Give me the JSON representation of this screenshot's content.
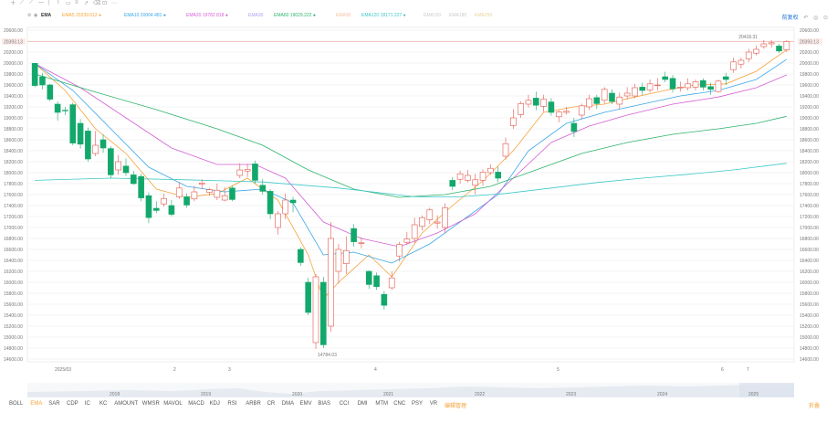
{
  "header": {
    "indicator_name": "EMA",
    "legend": [
      {
        "label": "EMA5",
        "value": "20239.612",
        "color": "#f6a23c"
      },
      {
        "label": "EMA10",
        "value": "20064.481",
        "color": "#3aa6e8"
      },
      {
        "label": "EMA20",
        "value": "19782.818",
        "color": "#d45fd4"
      },
      {
        "label": "EMA30",
        "value": "",
        "color": "#b0a0f0"
      },
      {
        "label": "EMA60",
        "value": "19029.222",
        "color": "#2db36a"
      },
      {
        "label": "EMA90",
        "value": "",
        "color": "#f6c0a0"
      },
      {
        "label": "EMA120",
        "value": "18171.227",
        "color": "#3ec8c8"
      },
      {
        "label": "EMA150",
        "value": "",
        "color": "#ccc"
      },
      {
        "label": "EMA180",
        "value": "",
        "color": "#ccc"
      },
      {
        "label": "EMA250",
        "value": "",
        "color": "#e6d2a0"
      }
    ],
    "right_label": "前复权"
  },
  "chart_data": {
    "type": "candlestick",
    "y_ticks": [
      14600,
      14800,
      15000,
      15200,
      15400,
      15600,
      15800,
      16000,
      16200,
      16400,
      16600,
      16800,
      17000,
      17200,
      17400,
      17600,
      17800,
      18000,
      18200,
      18400,
      18600,
      18800,
      19000,
      19200,
      19400,
      19600,
      19800,
      20000,
      20200,
      20400,
      20600
    ],
    "ylim": [
      14550,
      20650
    ],
    "x_labels": [
      "2025/03",
      "2",
      "3",
      "4",
      "5",
      "6",
      "7"
    ],
    "year_labels": [
      "2018",
      "2019",
      "2020",
      "2021",
      "2022",
      "2023",
      "2024",
      "2025"
    ],
    "current_price": "20393.13",
    "high_annotation": "20418.31",
    "low_annotation": "14784.03",
    "candles": [
      [
        19994,
        19590,
        20000,
        19560
      ],
      [
        19750,
        19600,
        19820,
        19520
      ],
      [
        19600,
        19340,
        19620,
        19300
      ],
      [
        19250,
        19100,
        19300,
        18950
      ],
      [
        19140,
        19130,
        19200,
        19050
      ],
      [
        19240,
        18540,
        19280,
        18500
      ],
      [
        18900,
        18520,
        18980,
        18440
      ],
      [
        18760,
        18250,
        18820,
        18200
      ],
      [
        18350,
        18500,
        18760,
        18300
      ],
      [
        18600,
        18450,
        18700,
        18360
      ],
      [
        18440,
        17960,
        18480,
        17900
      ],
      [
        18050,
        18200,
        18320,
        17960
      ],
      [
        18120,
        18000,
        18260,
        17940
      ],
      [
        17960,
        17800,
        18030,
        17780
      ],
      [
        17930,
        17540,
        17980,
        17480
      ],
      [
        17580,
        17180,
        17640,
        17080
      ],
      [
        17350,
        17310,
        17480,
        17260
      ],
      [
        17430,
        17530,
        17620,
        17380
      ],
      [
        17400,
        17240,
        17500,
        17200
      ],
      [
        17560,
        17720,
        17820,
        17520
      ],
      [
        17560,
        17410,
        17620,
        17360
      ],
      [
        17520,
        17650,
        17760,
        17480
      ],
      [
        17790,
        17810,
        17880,
        17700
      ],
      [
        17640,
        17690,
        17720,
        17580
      ],
      [
        17550,
        17680,
        17800,
        17500
      ],
      [
        17500,
        17580,
        17740,
        17480
      ],
      [
        17720,
        17510,
        17760,
        17480
      ],
      [
        17950,
        18050,
        18170,
        17900
      ],
      [
        18030,
        18060,
        18160,
        17920
      ],
      [
        18160,
        17860,
        18220,
        17800
      ],
      [
        17770,
        17660,
        17880,
        17600
      ],
      [
        17660,
        17250,
        17700,
        17150
      ],
      [
        17000,
        17250,
        17300,
        16870
      ],
      [
        17250,
        17500,
        17620,
        17150
      ],
      [
        17500,
        17450,
        17560,
        17280
      ],
      [
        16600,
        16360,
        16640,
        16300
      ],
      [
        16000,
        15450,
        16080,
        15400
      ],
      [
        14900,
        16100,
        16150,
        14784
      ],
      [
        16000,
        14860,
        16100,
        14800
      ],
      [
        15200,
        16800,
        17100,
        15100
      ],
      [
        16200,
        16600,
        16700,
        15980
      ],
      [
        16340,
        16580,
        16840,
        16150
      ],
      [
        16980,
        16740,
        17060,
        16650
      ],
      [
        16710,
        16720,
        16820,
        16620
      ],
      [
        16200,
        15960,
        16220,
        15880
      ],
      [
        16120,
        15920,
        16180,
        15860
      ],
      [
        15780,
        15580,
        15840,
        15500
      ],
      [
        15900,
        16080,
        16200,
        15860
      ],
      [
        16480,
        16690,
        16740,
        16380
      ],
      [
        16730,
        16790,
        16920,
        16680
      ],
      [
        16800,
        17050,
        17180,
        16720
      ],
      [
        17020,
        17180,
        17220,
        16940
      ],
      [
        17140,
        17320,
        17360,
        17060
      ],
      [
        17080,
        17100,
        17220,
        16980
      ],
      [
        17000,
        17360,
        17440,
        16900
      ],
      [
        17860,
        17750,
        17920,
        17680
      ],
      [
        17880,
        17980,
        18040,
        17800
      ],
      [
        17860,
        17950,
        18050,
        17820
      ],
      [
        17770,
        17870,
        17980,
        17600
      ],
      [
        17860,
        18010,
        18060,
        17760
      ],
      [
        18000,
        18080,
        18150,
        17960
      ],
      [
        18010,
        17900,
        18110,
        17820
      ],
      [
        18300,
        18530,
        18640,
        18240
      ],
      [
        18860,
        19000,
        19160,
        18800
      ],
      [
        19060,
        19260,
        19300,
        19000
      ],
      [
        19250,
        19320,
        19420,
        19190
      ],
      [
        19360,
        19230,
        19480,
        19140
      ],
      [
        19210,
        19340,
        19420,
        19110
      ],
      [
        19290,
        19100,
        19360,
        19040
      ],
      [
        19020,
        19110,
        19140,
        18920
      ],
      [
        19100,
        19120,
        19200,
        19060
      ],
      [
        18900,
        18750,
        19000,
        18650
      ],
      [
        19050,
        19220,
        19260,
        18980
      ],
      [
        19200,
        19350,
        19420,
        19140
      ],
      [
        19370,
        19260,
        19420,
        19160
      ],
      [
        19320,
        19520,
        19560,
        19260
      ],
      [
        19450,
        19300,
        19520,
        19250
      ],
      [
        19250,
        19380,
        19460,
        19160
      ],
      [
        19400,
        19450,
        19560,
        19340
      ],
      [
        19400,
        19550,
        19620,
        19360
      ],
      [
        19560,
        19500,
        19640,
        19420
      ],
      [
        19510,
        19620,
        19700,
        19460
      ],
      [
        19600,
        19600,
        19720,
        19500
      ],
      [
        19750,
        19700,
        19840,
        19650
      ],
      [
        19720,
        19530,
        19780,
        19460
      ],
      [
        19560,
        19560,
        19660,
        19480
      ],
      [
        19550,
        19620,
        19720,
        19500
      ],
      [
        19560,
        19660,
        19700,
        19500
      ],
      [
        19680,
        19560,
        19720,
        19500
      ],
      [
        19570,
        19520,
        19640,
        19420
      ],
      [
        19480,
        19670,
        19700,
        19460
      ],
      [
        19750,
        19700,
        19820,
        19600
      ],
      [
        19880,
        20020,
        20100,
        19820
      ],
      [
        19980,
        20050,
        20100,
        19900
      ],
      [
        20080,
        20200,
        20260,
        20020
      ],
      [
        20180,
        20250,
        20320,
        20140
      ],
      [
        20300,
        20350,
        20420,
        20260
      ],
      [
        20350,
        20370,
        20418,
        20280
      ],
      [
        20310,
        20220,
        20350,
        20180
      ],
      [
        20240,
        20393,
        20420,
        20200
      ]
    ],
    "ema_lines": [
      {
        "name": "EMA5",
        "color": "#f6a23c",
        "values": [
          [
            0,
            19990
          ],
          [
            4,
            19500
          ],
          [
            8,
            18800
          ],
          [
            12,
            18350
          ],
          [
            16,
            17700
          ],
          [
            20,
            17550
          ],
          [
            24,
            17620
          ],
          [
            28,
            17900
          ],
          [
            32,
            17500
          ],
          [
            36,
            16500
          ],
          [
            38,
            15700
          ],
          [
            40,
            16000
          ],
          [
            44,
            16500
          ],
          [
            47,
            16100
          ],
          [
            51,
            16900
          ],
          [
            55,
            17400
          ],
          [
            59,
            17850
          ],
          [
            63,
            18400
          ],
          [
            67,
            19100
          ],
          [
            71,
            19200
          ],
          [
            75,
            19250
          ],
          [
            79,
            19380
          ],
          [
            83,
            19500
          ],
          [
            87,
            19600
          ],
          [
            91,
            19620
          ],
          [
            95,
            19850
          ],
          [
            99,
            20240
          ]
        ]
      },
      {
        "name": "EMA10",
        "color": "#3aa6e8",
        "values": [
          [
            0,
            19990
          ],
          [
            5,
            19500
          ],
          [
            10,
            18800
          ],
          [
            15,
            18100
          ],
          [
            20,
            17750
          ],
          [
            25,
            17650
          ],
          [
            30,
            17700
          ],
          [
            34,
            17450
          ],
          [
            38,
            16500
          ],
          [
            42,
            16550
          ],
          [
            47,
            16350
          ],
          [
            52,
            16700
          ],
          [
            57,
            17200
          ],
          [
            61,
            17600
          ],
          [
            65,
            18400
          ],
          [
            70,
            18900
          ],
          [
            75,
            19100
          ],
          [
            80,
            19250
          ],
          [
            85,
            19400
          ],
          [
            90,
            19500
          ],
          [
            95,
            19700
          ],
          [
            99,
            20065
          ]
        ]
      },
      {
        "name": "EMA20",
        "color": "#d45fd4",
        "values": [
          [
            0,
            19990
          ],
          [
            6,
            19550
          ],
          [
            12,
            19000
          ],
          [
            18,
            18450
          ],
          [
            24,
            18150
          ],
          [
            29,
            18150
          ],
          [
            33,
            17900
          ],
          [
            38,
            17100
          ],
          [
            43,
            16800
          ],
          [
            48,
            16650
          ],
          [
            53,
            16900
          ],
          [
            58,
            17250
          ],
          [
            63,
            17900
          ],
          [
            68,
            18550
          ],
          [
            73,
            18850
          ],
          [
            78,
            19050
          ],
          [
            84,
            19250
          ],
          [
            90,
            19380
          ],
          [
            95,
            19550
          ],
          [
            99,
            19783
          ]
        ]
      },
      {
        "name": "EMA60",
        "color": "#2db36a",
        "values": [
          [
            0,
            19800
          ],
          [
            8,
            19470
          ],
          [
            16,
            19150
          ],
          [
            24,
            18800
          ],
          [
            30,
            18500
          ],
          [
            36,
            18050
          ],
          [
            42,
            17700
          ],
          [
            48,
            17550
          ],
          [
            54,
            17600
          ],
          [
            60,
            17750
          ],
          [
            66,
            18050
          ],
          [
            72,
            18350
          ],
          [
            78,
            18550
          ],
          [
            84,
            18700
          ],
          [
            90,
            18800
          ],
          [
            95,
            18900
          ],
          [
            99,
            19029
          ]
        ]
      },
      {
        "name": "EMA120",
        "color": "#3ec8c8",
        "values": [
          [
            0,
            17860
          ],
          [
            10,
            17900
          ],
          [
            20,
            17870
          ],
          [
            30,
            17830
          ],
          [
            40,
            17720
          ],
          [
            50,
            17560
          ],
          [
            56,
            17560
          ],
          [
            62,
            17620
          ],
          [
            68,
            17720
          ],
          [
            74,
            17820
          ],
          [
            80,
            17900
          ],
          [
            86,
            17970
          ],
          [
            92,
            18050
          ],
          [
            99,
            18171
          ]
        ]
      }
    ]
  },
  "indicators": {
    "tabs": [
      "BOLL",
      "EMA",
      "SAR",
      "CDP",
      "IC",
      "KC",
      "AMOUNT",
      "WMSR",
      "MAVOL",
      "MACD",
      "KDJ",
      "RSI",
      "ARBR",
      "CR",
      "DMA",
      "EMV",
      "BIAS",
      "CCI",
      "DMI",
      "MTM",
      "CNC",
      "PSY",
      "VR"
    ],
    "active": "EMA",
    "edit_label": "编辑管理",
    "right_label": "折叠"
  }
}
